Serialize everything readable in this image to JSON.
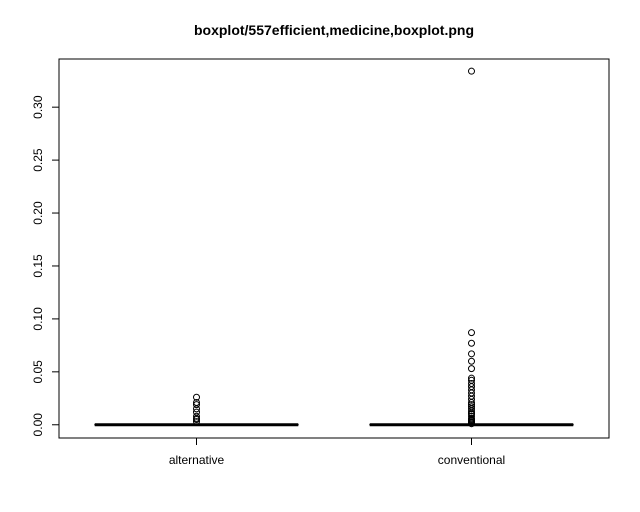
{
  "chart_data": {
    "type": "boxplot",
    "title": "boxplot/557efficient,medicine,boxplot.png",
    "xlabel": "",
    "ylabel": "",
    "ylim": [
      -0.0125,
      0.3455
    ],
    "y_ticks": [
      0.0,
      0.05,
      0.1,
      0.15,
      0.2,
      0.25,
      0.3
    ],
    "y_tick_labels": [
      "0.00",
      "0.05",
      "0.10",
      "0.15",
      "0.20",
      "0.25",
      "0.30"
    ],
    "categories": [
      "alternative",
      "conventional"
    ],
    "series": [
      {
        "category": "alternative",
        "q1": 0.0,
        "median": 0.0,
        "q3": 0.0,
        "whisker_low": 0.0,
        "whisker_high": 0.0,
        "outliers": [
          0.003,
          0.005,
          0.006,
          0.008,
          0.012,
          0.015,
          0.019,
          0.021,
          0.026
        ]
      },
      {
        "category": "conventional",
        "q1": 0.0,
        "median": 0.0,
        "q3": 0.0,
        "whisker_low": 0.0,
        "whisker_high": 0.0,
        "outliers": [
          0.001,
          0.002,
          0.003,
          0.004,
          0.005,
          0.006,
          0.008,
          0.01,
          0.011,
          0.013,
          0.015,
          0.017,
          0.019,
          0.021,
          0.024,
          0.027,
          0.03,
          0.033,
          0.036,
          0.039,
          0.042,
          0.044,
          0.053,
          0.06,
          0.067,
          0.077,
          0.087,
          0.334
        ]
      }
    ]
  }
}
